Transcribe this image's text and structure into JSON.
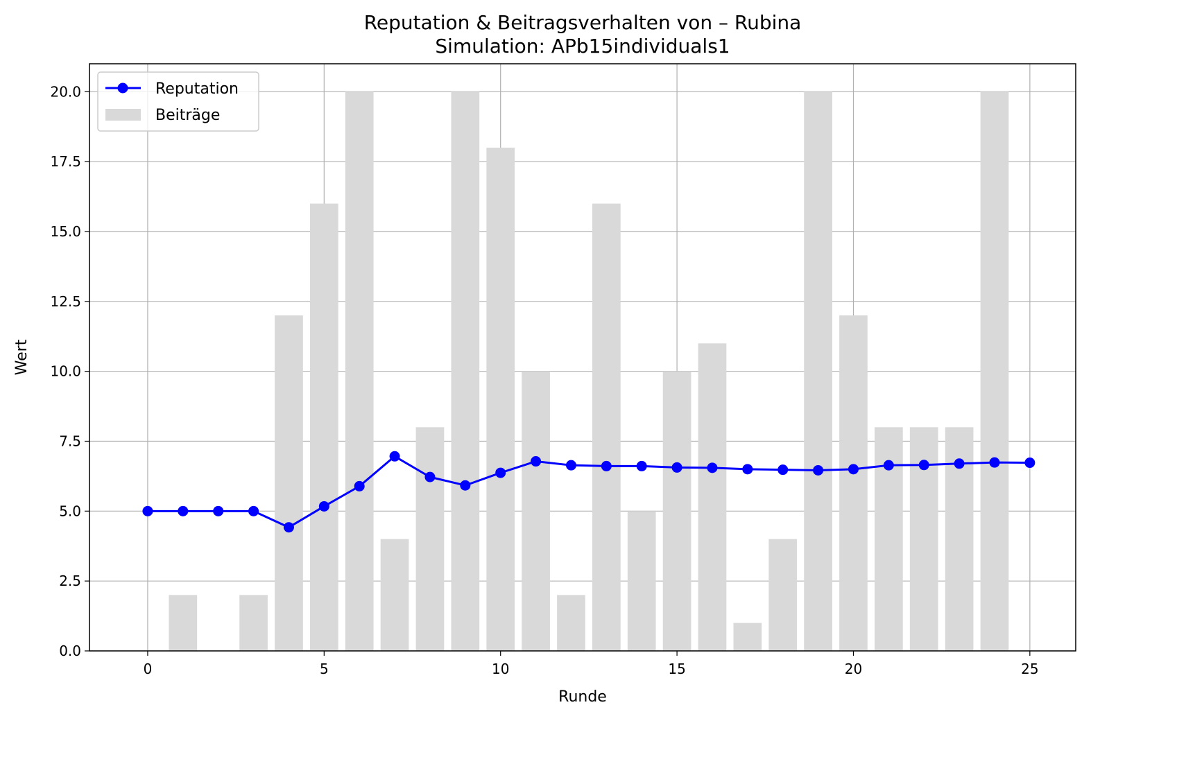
{
  "chart_data": {
    "type": "bar+line",
    "title": "Reputation & Beitragsverhalten von – Rubina",
    "subtitle": "Simulation: APb15individuals1",
    "xlabel": "Runde",
    "ylabel": "Wert",
    "xlim": [
      -1.65,
      26.3
    ],
    "ylim": [
      0,
      21
    ],
    "xticks": [
      0,
      5,
      10,
      15,
      20,
      25
    ],
    "yticks": [
      0.0,
      2.5,
      5.0,
      7.5,
      10.0,
      12.5,
      15.0,
      17.5,
      20.0
    ],
    "grid": true,
    "legend_position": "top-left",
    "series": [
      {
        "name": "Reputation",
        "kind": "line",
        "color": "#0000ff",
        "x": [
          0,
          1,
          2,
          3,
          4,
          5,
          6,
          7,
          8,
          9,
          10,
          11,
          12,
          13,
          14,
          15,
          16,
          17,
          18,
          19,
          20,
          21,
          22,
          23,
          24,
          25
        ],
        "values": [
          5.0,
          5.0,
          5.0,
          5.0,
          4.42,
          5.17,
          5.89,
          6.96,
          6.22,
          5.92,
          6.37,
          6.78,
          6.64,
          6.61,
          6.61,
          6.56,
          6.55,
          6.5,
          6.48,
          6.46,
          6.5,
          6.64,
          6.65,
          6.7,
          6.74,
          6.73
        ]
      },
      {
        "name": "Beiträge",
        "kind": "bar",
        "color": "#d9d9d9",
        "x": [
          0,
          1,
          2,
          3,
          4,
          5,
          6,
          7,
          8,
          9,
          10,
          11,
          12,
          13,
          14,
          15,
          16,
          17,
          18,
          19,
          20,
          21,
          22,
          23,
          24
        ],
        "values": [
          0,
          2,
          0,
          2,
          12,
          16,
          20,
          4,
          8,
          20,
          18,
          10,
          2,
          16,
          5,
          10,
          11,
          1,
          4,
          20,
          12,
          8,
          8,
          8,
          20
        ]
      }
    ]
  }
}
